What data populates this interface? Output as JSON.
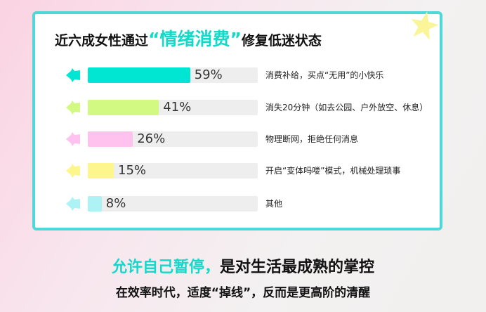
{
  "title": {
    "pre": "近六成女性通过",
    "highlight": "“情绪消费”",
    "post": "修复低迷状态"
  },
  "chart_data": {
    "type": "bar",
    "orientation": "horizontal",
    "categories": [
      "消费补给，买点“无用”的小快乐",
      "消失20分钟（如去公园、户外放空、休息）",
      "物理断网，拒绝任何消息",
      "开启“变体吗喽”模式，机械处理琐事",
      "其他"
    ],
    "values": [
      59,
      41,
      26,
      15,
      8
    ],
    "labels": [
      "59%",
      "41%",
      "26%",
      "15%",
      "8%"
    ],
    "colors": [
      "#00e6d2",
      "#d2fa82",
      "#ffc2ee",
      "#fcf68c",
      "#adf3f5"
    ],
    "xlim": [
      0,
      100
    ],
    "unit": "%"
  },
  "footer": {
    "line1_highlight": "允许自己暂停，",
    "line1_rest": "是对生活最成熟的掌控",
    "line2": "在效率时代，适度“掉线”，反而是更高阶的清醒"
  },
  "colors": {
    "accent": "#14d8c8",
    "border": "#4fd8d8",
    "star": "#fbf59a"
  }
}
